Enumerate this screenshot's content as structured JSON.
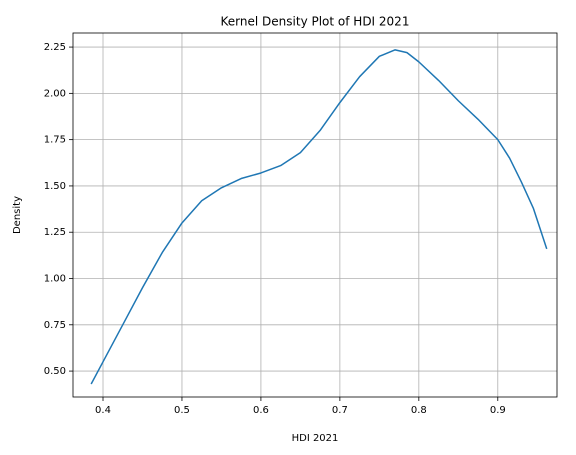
{
  "chart_data": {
    "type": "line",
    "title": "Kernel Density Plot of HDI 2021",
    "xlabel": "HDI 2021",
    "ylabel": "Density",
    "x": [
      0.385,
      0.4,
      0.425,
      0.45,
      0.475,
      0.5,
      0.525,
      0.55,
      0.575,
      0.6,
      0.625,
      0.65,
      0.675,
      0.7,
      0.725,
      0.75,
      0.77,
      0.785,
      0.8,
      0.825,
      0.85,
      0.875,
      0.9,
      0.915,
      0.93,
      0.945,
      0.962
    ],
    "series": [
      {
        "name": "Density",
        "color": "#1f77b4",
        "values": [
          0.43,
          0.55,
          0.75,
          0.95,
          1.14,
          1.3,
          1.42,
          1.49,
          1.54,
          1.57,
          1.61,
          1.68,
          1.8,
          1.95,
          2.09,
          2.2,
          2.235,
          2.22,
          2.17,
          2.07,
          1.96,
          1.86,
          1.75,
          1.65,
          1.52,
          1.38,
          1.16
        ]
      }
    ],
    "xlim": [
      0.362,
      0.975
    ],
    "ylim": [
      0.36,
      2.326
    ],
    "xticks": [
      0.4,
      0.5,
      0.6,
      0.7,
      0.8,
      0.9
    ],
    "yticks": [
      {
        "value": 0.5,
        "label": "0.50"
      },
      0.75,
      {
        "value": 1,
        "label": "1.00"
      },
      1.25,
      {
        "value": 1.5,
        "label": "1.50"
      },
      1.75,
      {
        "value": 2,
        "label": "2.00"
      },
      2.25
    ],
    "grid": true
  }
}
